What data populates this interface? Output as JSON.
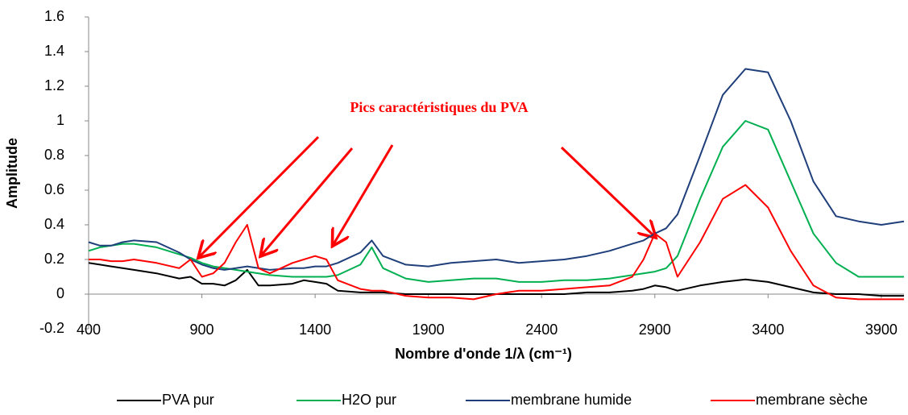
{
  "chart_data": {
    "type": "line",
    "xlabel": "Nombre d'onde 1/λ  (cm⁻¹)",
    "ylabel": "Amplitude",
    "annotation": "Pics caractéristiques du PVA",
    "x": [
      400,
      450,
      500,
      550,
      600,
      700,
      800,
      850,
      900,
      950,
      1000,
      1050,
      1100,
      1150,
      1200,
      1300,
      1350,
      1400,
      1450,
      1500,
      1600,
      1650,
      1700,
      1800,
      1900,
      2000,
      2100,
      2200,
      2300,
      2400,
      2500,
      2600,
      2700,
      2800,
      2850,
      2900,
      2950,
      3000,
      3100,
      3200,
      3300,
      3400,
      3500,
      3600,
      3700,
      3800,
      3900,
      4000
    ],
    "series": [
      {
        "name": "PVA pur",
        "color": "#000000",
        "values": [
          0.18,
          0.17,
          0.16,
          0.15,
          0.14,
          0.12,
          0.09,
          0.1,
          0.06,
          0.06,
          0.05,
          0.08,
          0.14,
          0.05,
          0.05,
          0.06,
          0.08,
          0.07,
          0.06,
          0.02,
          0.01,
          0.01,
          0.01,
          0,
          0,
          0,
          0,
          0,
          0,
          0,
          0,
          0.01,
          0.01,
          0.02,
          0.03,
          0.05,
          0.04,
          0.02,
          0.05,
          0.07,
          0.085,
          0.07,
          0.04,
          0.01,
          0,
          0,
          -0.01,
          -0.01
        ]
      },
      {
        "name": "H2O pur",
        "color": "#00b050",
        "values": [
          0.25,
          0.27,
          0.28,
          0.29,
          0.29,
          0.27,
          0.23,
          0.21,
          0.18,
          0.16,
          0.15,
          0.14,
          0.13,
          0.12,
          0.11,
          0.1,
          0.1,
          0.1,
          0.1,
          0.11,
          0.17,
          0.27,
          0.15,
          0.09,
          0.07,
          0.08,
          0.09,
          0.09,
          0.07,
          0.07,
          0.08,
          0.08,
          0.09,
          0.11,
          0.12,
          0.13,
          0.15,
          0.22,
          0.55,
          0.85,
          1.0,
          0.95,
          0.65,
          0.35,
          0.18,
          0.1,
          0.1,
          0.1
        ]
      },
      {
        "name": "membrane humide",
        "color": "#1f3f7a",
        "values": [
          0.3,
          0.28,
          0.28,
          0.3,
          0.31,
          0.3,
          0.24,
          0.2,
          0.17,
          0.15,
          0.14,
          0.15,
          0.16,
          0.15,
          0.14,
          0.15,
          0.15,
          0.16,
          0.16,
          0.18,
          0.24,
          0.31,
          0.22,
          0.17,
          0.16,
          0.18,
          0.19,
          0.2,
          0.18,
          0.19,
          0.2,
          0.22,
          0.25,
          0.29,
          0.31,
          0.35,
          0.38,
          0.46,
          0.8,
          1.15,
          1.3,
          1.28,
          1.0,
          0.65,
          0.45,
          0.42,
          0.4,
          0.42
        ]
      },
      {
        "name": "membrane sèche",
        "color": "#ff0000",
        "values": [
          0.2,
          0.2,
          0.19,
          0.19,
          0.2,
          0.18,
          0.15,
          0.2,
          0.1,
          0.12,
          0.18,
          0.3,
          0.4,
          0.15,
          0.12,
          0.18,
          0.2,
          0.22,
          0.2,
          0.08,
          0.03,
          0.02,
          0.02,
          -0.01,
          -0.02,
          -0.02,
          -0.03,
          0,
          0.02,
          0.02,
          0.03,
          0.04,
          0.05,
          0.1,
          0.2,
          0.35,
          0.3,
          0.1,
          0.3,
          0.55,
          0.63,
          0.5,
          0.25,
          0.05,
          -0.02,
          -0.03,
          -0.03,
          -0.03
        ]
      }
    ],
    "xlim": [
      400,
      4000
    ],
    "xticks": [
      400,
      900,
      1400,
      1900,
      2400,
      2900,
      3400,
      3900
    ],
    "ylim": [
      -0.2,
      1.6
    ],
    "yticks": [
      -0.2,
      0,
      0.2,
      0.4,
      0.6,
      0.8,
      1,
      1.2,
      1.4,
      1.6
    ],
    "grid": false,
    "legend": "bottom"
  }
}
